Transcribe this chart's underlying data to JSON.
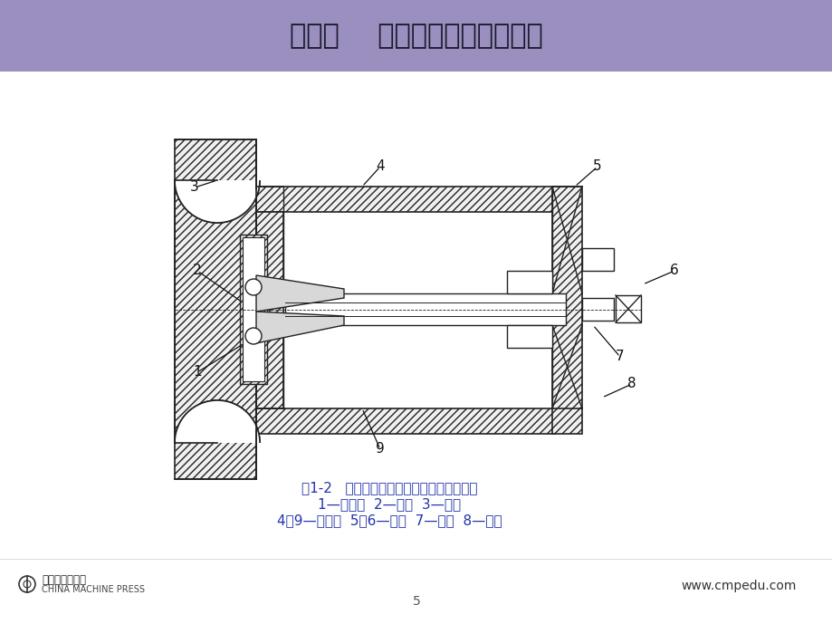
{
  "title": "第一章    构件的受力分析与计算",
  "header_color": "#9B8FBF",
  "bg_color": "#FFFFFF",
  "title_color": "#1a1a2e",
  "title_fontsize": 22,
  "caption_line1": "图1-2   退出轴承时力的作用点和方向的选择",
  "caption_line2": "1—张紧圈  2—轴承  3—工件",
  "caption_line3": "4、9—等高块  5、6—螺母  7—吊杆  8—压块",
  "caption_color": "#2233AA",
  "caption_fontsize": 11,
  "footer_right": "www.cmpedu.com",
  "footer_color": "#333333",
  "footer_fontsize": 9,
  "line_color": "#222222"
}
